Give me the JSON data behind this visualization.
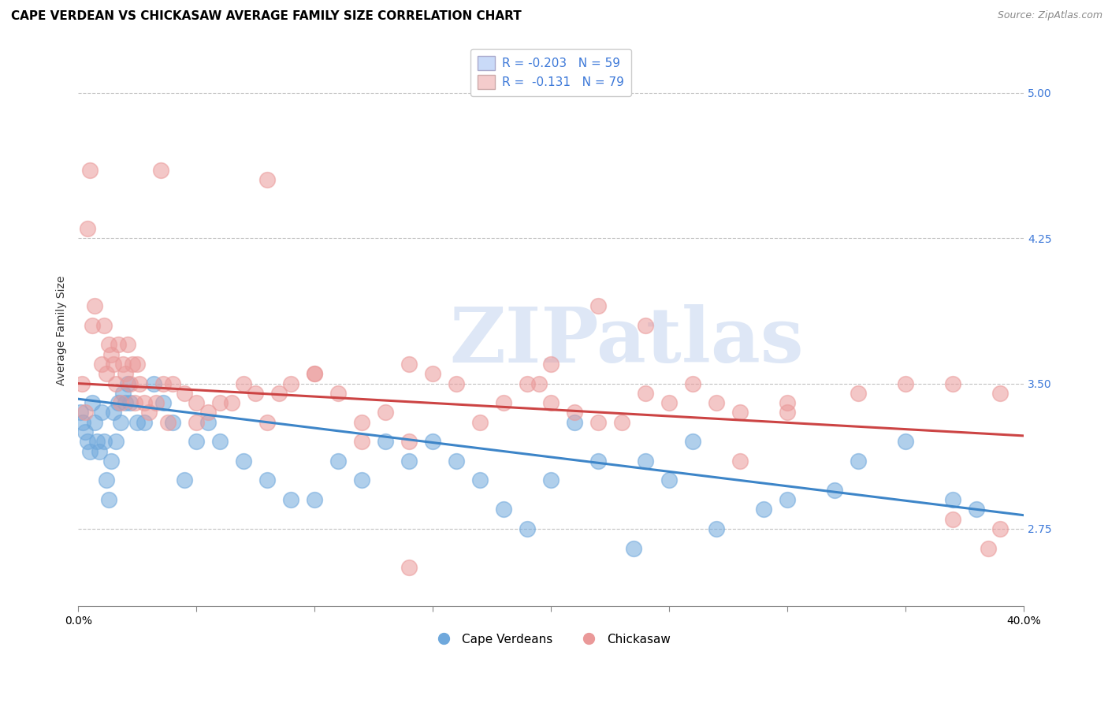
{
  "title": "CAPE VERDEAN VS CHICKASAW AVERAGE FAMILY SIZE CORRELATION CHART",
  "source": "Source: ZipAtlas.com",
  "ylabel": "Average Family Size",
  "yticks": [
    2.75,
    3.5,
    4.25,
    5.0
  ],
  "xlim": [
    0.0,
    40.0
  ],
  "ylim": [
    2.35,
    5.2
  ],
  "blue_color": "#6fa8dc",
  "blue_edge": "#6fa8dc",
  "pink_color": "#ea9999",
  "pink_edge": "#ea9999",
  "blue_fill": "#c9daf8",
  "pink_fill": "#f4cccc",
  "blue_line_color": "#3d85c8",
  "pink_line_color": "#cc4444",
  "label_color": "#3c78d8",
  "grid_color": "#bbbbbb",
  "background_color": "#ffffff",
  "watermark_text": "ZIPatlas",
  "watermark_color": "#c8d8f0",
  "legend_R_blue": "R = -0.203",
  "legend_N_blue": "N = 59",
  "legend_R_pink": "R =  -0.131",
  "legend_N_pink": "N = 79",
  "legend_label_blue": "Cape Verdeans",
  "legend_label_pink": "Chickasaw",
  "blue_trend_start": 3.42,
  "blue_trend_end": 2.82,
  "pink_trend_start": 3.5,
  "pink_trend_end": 3.23,
  "blue_scatter_x": [
    0.1,
    0.2,
    0.3,
    0.4,
    0.5,
    0.6,
    0.7,
    0.8,
    0.9,
    1.0,
    1.1,
    1.2,
    1.3,
    1.4,
    1.5,
    1.6,
    1.7,
    1.8,
    1.9,
    2.0,
    2.1,
    2.2,
    2.5,
    2.8,
    3.2,
    3.6,
    4.0,
    4.5,
    5.0,
    5.5,
    6.0,
    7.0,
    8.0,
    9.0,
    10.0,
    11.0,
    12.0,
    13.0,
    14.0,
    15.0,
    16.0,
    17.0,
    18.0,
    19.0,
    20.0,
    21.0,
    22.0,
    23.5,
    25.0,
    27.0,
    29.0,
    30.0,
    33.0,
    35.0,
    37.0,
    38.0,
    24.0,
    26.0,
    32.0
  ],
  "blue_scatter_y": [
    3.35,
    3.3,
    3.25,
    3.2,
    3.15,
    3.4,
    3.3,
    3.2,
    3.15,
    3.35,
    3.2,
    3.0,
    2.9,
    3.1,
    3.35,
    3.2,
    3.4,
    3.3,
    3.45,
    3.4,
    3.5,
    3.4,
    3.3,
    3.3,
    3.5,
    3.4,
    3.3,
    3.0,
    3.2,
    3.3,
    3.2,
    3.1,
    3.0,
    2.9,
    2.9,
    3.1,
    3.0,
    3.2,
    3.1,
    3.2,
    3.1,
    3.0,
    2.85,
    2.75,
    3.0,
    3.3,
    3.1,
    2.65,
    3.0,
    2.75,
    2.85,
    2.9,
    3.1,
    3.2,
    2.9,
    2.85,
    3.1,
    3.2,
    2.95
  ],
  "pink_scatter_x": [
    0.15,
    0.4,
    0.7,
    1.0,
    1.2,
    1.4,
    1.6,
    1.8,
    2.0,
    2.2,
    2.4,
    2.6,
    2.8,
    3.0,
    3.3,
    3.6,
    4.0,
    4.5,
    5.0,
    5.5,
    6.0,
    6.5,
    7.0,
    7.5,
    8.0,
    8.5,
    9.0,
    10.0,
    11.0,
    12.0,
    13.0,
    14.0,
    15.0,
    16.0,
    17.0,
    18.0,
    19.0,
    20.0,
    21.0,
    22.0,
    23.0,
    24.0,
    25.0,
    26.0,
    27.0,
    28.0,
    30.0,
    33.0,
    35.0,
    37.0,
    39.0,
    1.1,
    1.3,
    1.5,
    2.1,
    2.3,
    2.5,
    0.5,
    1.9,
    3.8,
    10.0,
    14.0,
    20.0,
    14.0,
    22.0,
    28.0,
    38.5,
    19.5,
    8.0,
    3.5,
    0.3,
    0.6,
    1.7,
    5.0,
    12.0,
    24.0,
    30.0,
    39.0,
    37.0
  ],
  "pink_scatter_y": [
    3.5,
    4.3,
    3.9,
    3.6,
    3.55,
    3.65,
    3.5,
    3.4,
    3.55,
    3.5,
    3.4,
    3.5,
    3.4,
    3.35,
    3.4,
    3.5,
    3.5,
    3.45,
    3.3,
    3.35,
    3.4,
    3.4,
    3.5,
    3.45,
    3.3,
    3.45,
    3.5,
    3.55,
    3.45,
    3.2,
    3.35,
    3.2,
    3.55,
    3.5,
    3.3,
    3.4,
    3.5,
    3.4,
    3.35,
    3.3,
    3.3,
    3.45,
    3.4,
    3.5,
    3.4,
    3.35,
    3.4,
    3.45,
    3.5,
    3.5,
    3.45,
    3.8,
    3.7,
    3.6,
    3.7,
    3.6,
    3.6,
    4.6,
    3.6,
    3.3,
    3.55,
    3.6,
    3.6,
    2.55,
    3.9,
    3.1,
    2.65,
    3.5,
    4.55,
    4.6,
    3.35,
    3.8,
    3.7,
    3.4,
    3.3,
    3.8,
    3.35,
    2.75,
    2.8
  ],
  "title_fontsize": 11,
  "axis_label_fontsize": 10,
  "tick_fontsize": 10,
  "legend_fontsize": 11,
  "source_fontsize": 9
}
